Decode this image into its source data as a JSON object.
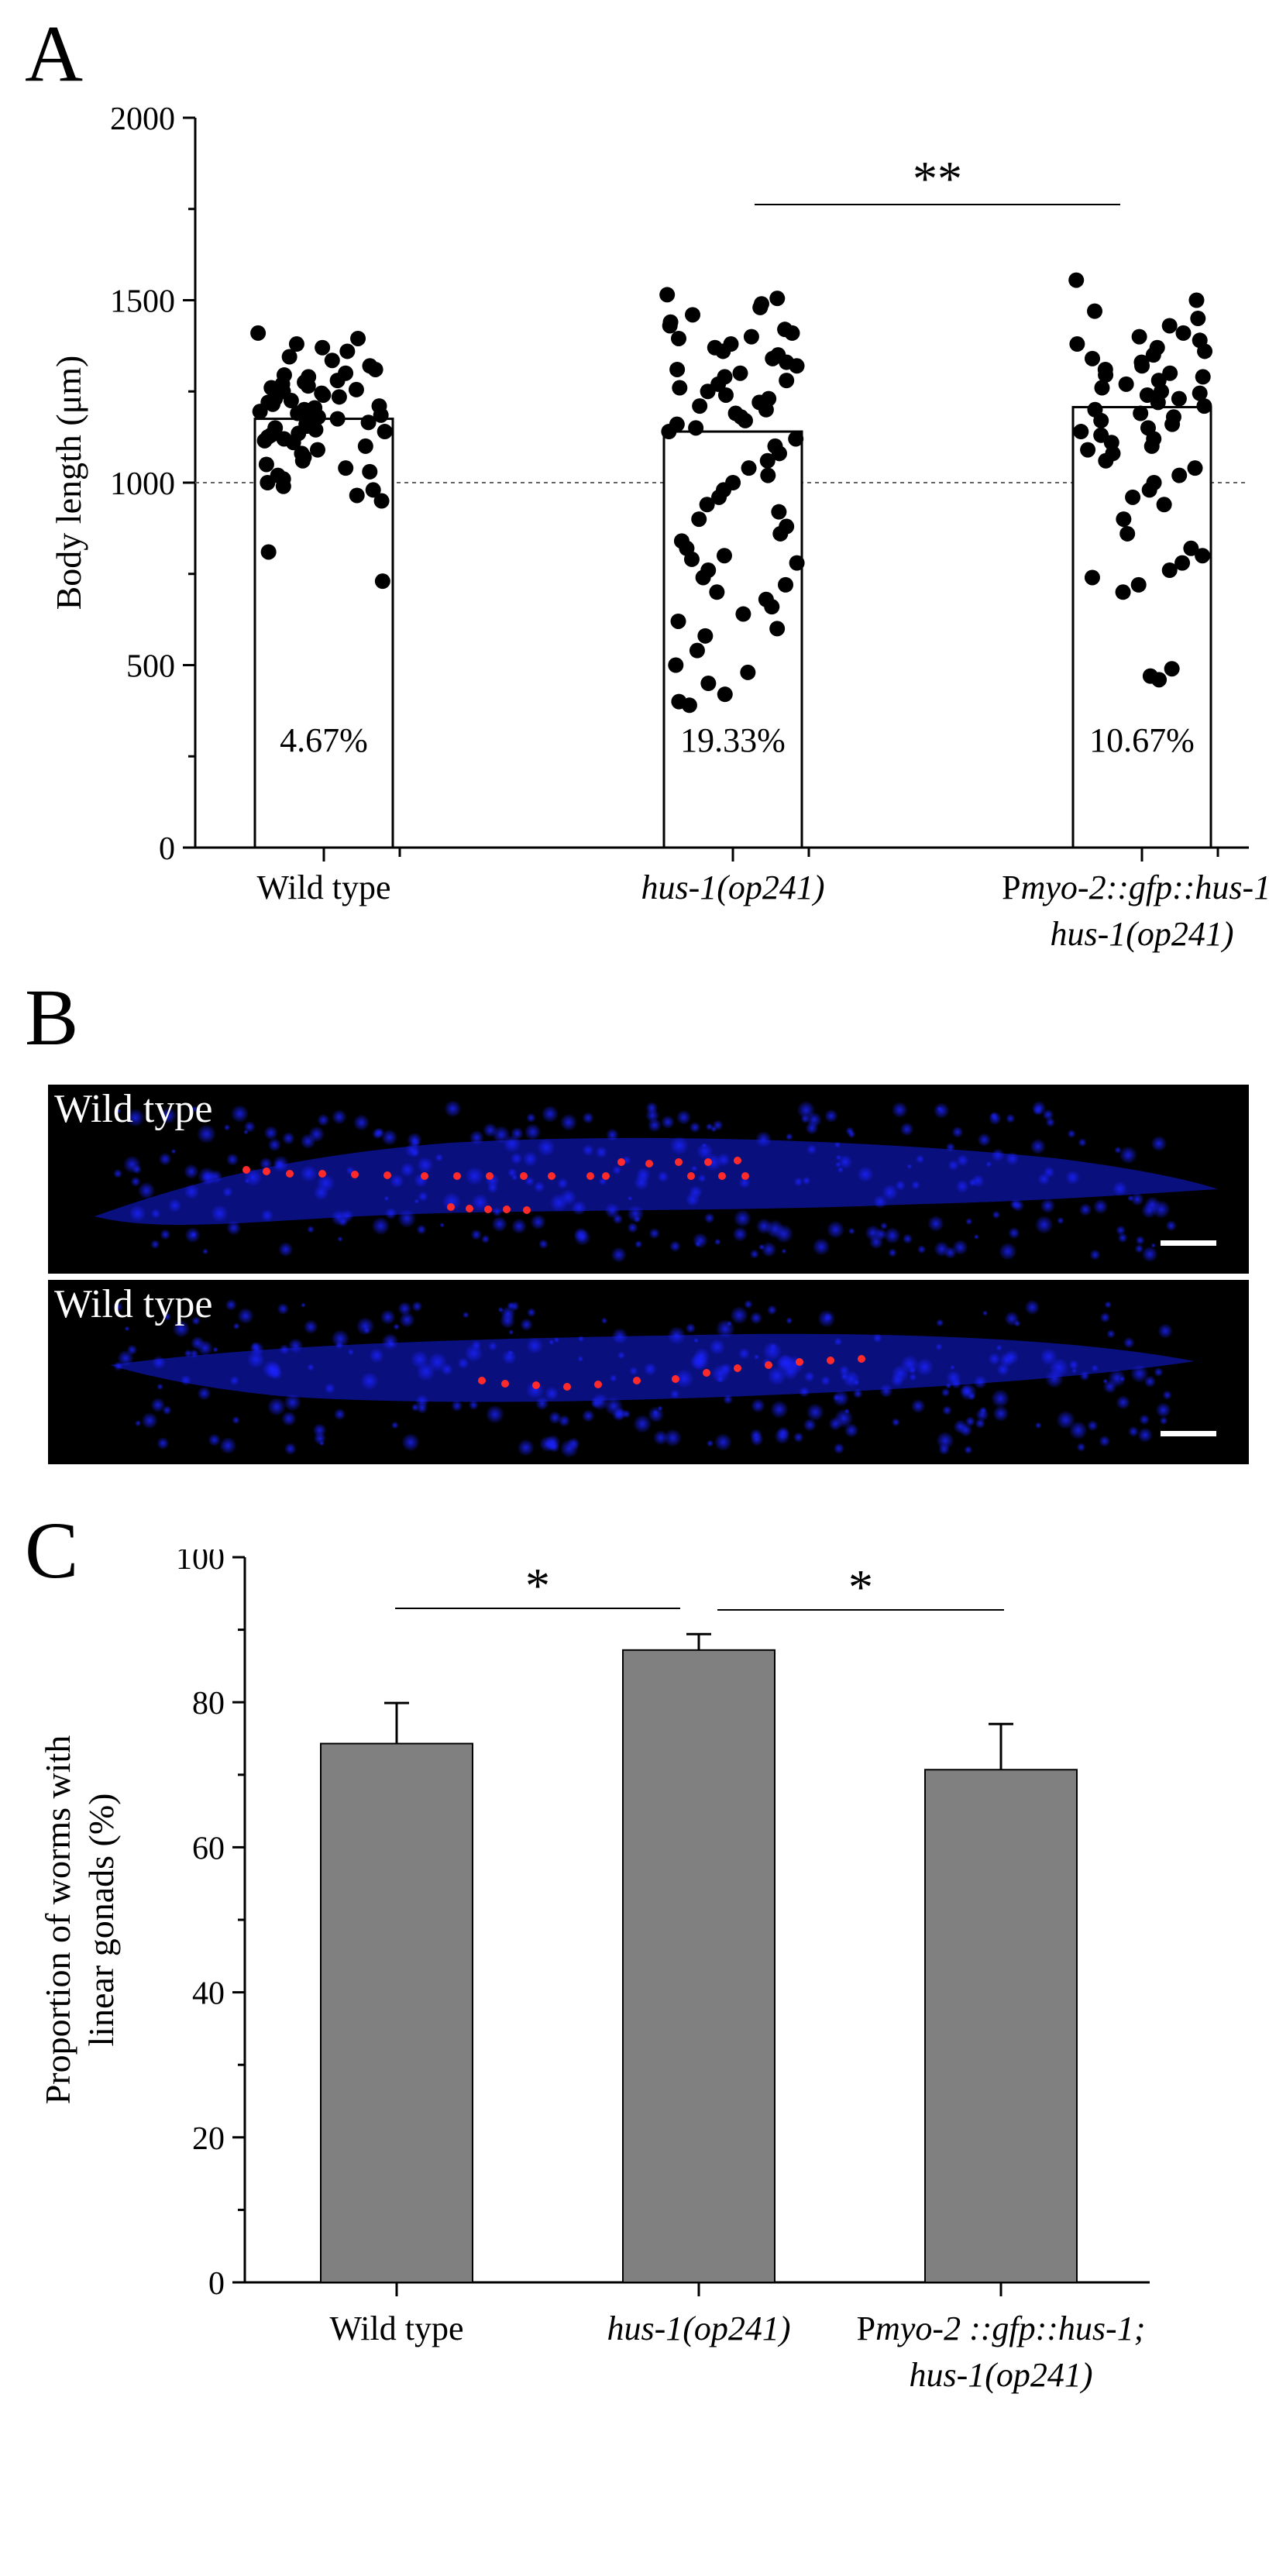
{
  "panels": {
    "a": {
      "letter": "A",
      "chart_data": {
        "type": "scatter",
        "ylabel": "Body length (μm)",
        "ylim": [
          0,
          2000
        ],
        "yticks": [
          0,
          500,
          1000,
          1500,
          2000
        ],
        "reference_line": 1000,
        "categories": [
          {
            "parts": [
              {
                "text": "Wild type",
                "italic": false
              }
            ],
            "line2": []
          },
          {
            "parts": [
              {
                "text": "hus-1(op241)",
                "italic": true
              }
            ],
            "line2": []
          },
          {
            "parts": [
              {
                "text": "P",
                "italic": false
              },
              {
                "text": "myo-2::gfp::hus-1;",
                "italic": true
              }
            ],
            "line2": [
              {
                "text": "hus-1(op241)",
                "italic": true
              }
            ]
          }
        ],
        "bar_means": [
          1175,
          1140,
          1207
        ],
        "percent_labels": [
          "4.67%",
          "19.33%",
          "10.67%"
        ],
        "points": [
          [
            1410,
            1395,
            1380,
            1370,
            1360,
            1345,
            1335,
            1320,
            1310,
            1300,
            1295,
            1290,
            1280,
            1275,
            1270,
            1265,
            1260,
            1255,
            1250,
            1245,
            1240,
            1235,
            1230,
            1225,
            1220,
            1215,
            1210,
            1205,
            1200,
            1195,
            1190,
            1185,
            1180,
            1175,
            1170,
            1165,
            1160,
            1155,
            1150,
            1145,
            1140,
            1135,
            1130,
            1125,
            1120,
            1115,
            1110,
            1100,
            1090,
            1080,
            1070,
            1060,
            1050,
            1040,
            1030,
            1020,
            1010,
            1000,
            990,
            980,
            965,
            950,
            810,
            730
          ],
          [
            1515,
            1505,
            1490,
            1480,
            1460,
            1440,
            1430,
            1420,
            1410,
            1400,
            1395,
            1380,
            1370,
            1360,
            1350,
            1340,
            1330,
            1320,
            1310,
            1300,
            1290,
            1280,
            1270,
            1260,
            1250,
            1240,
            1230,
            1220,
            1210,
            1200,
            1190,
            1180,
            1170,
            1160,
            1150,
            1140,
            1120,
            1100,
            1080,
            1060,
            1040,
            1020,
            1000,
            980,
            960,
            940,
            920,
            900,
            880,
            860,
            840,
            820,
            800,
            790,
            780,
            760,
            740,
            720,
            700,
            680,
            660,
            640,
            620,
            600,
            580,
            540,
            500,
            480,
            450,
            420,
            400,
            390
          ],
          [
            1555,
            1500,
            1470,
            1450,
            1430,
            1410,
            1400,
            1390,
            1380,
            1370,
            1360,
            1350,
            1340,
            1330,
            1320,
            1310,
            1300,
            1295,
            1290,
            1280,
            1270,
            1260,
            1250,
            1245,
            1240,
            1230,
            1220,
            1210,
            1200,
            1190,
            1180,
            1170,
            1160,
            1150,
            1140,
            1130,
            1120,
            1110,
            1100,
            1090,
            1080,
            1060,
            1040,
            1020,
            1000,
            980,
            960,
            940,
            900,
            860,
            820,
            800,
            780,
            760,
            740,
            720,
            700,
            490,
            470,
            460
          ]
        ],
        "significance": [
          {
            "from": 1,
            "to": 2,
            "label": "**"
          }
        ]
      }
    },
    "b": {
      "letter": "B",
      "images": [
        {
          "label": "Wild type"
        },
        {
          "label": "Wild type"
        }
      ],
      "colors": {
        "nuclei": "#1a22ff",
        "marker": "#ff2a2a",
        "background": "#000000"
      }
    },
    "c": {
      "letter": "C",
      "chart_data": {
        "type": "bar",
        "ylabel_lines": [
          "Proportion of worms with",
          "linear gonads (%)"
        ],
        "ylim": [
          0,
          100
        ],
        "yticks": [
          0,
          20,
          40,
          60,
          80,
          100
        ],
        "categories": [
          {
            "parts": [
              {
                "text": "Wild type",
                "italic": false
              }
            ],
            "line2": []
          },
          {
            "parts": [
              {
                "text": "hus-1(op241)",
                "italic": true
              }
            ],
            "line2": []
          },
          {
            "parts": [
              {
                "text": "P",
                "italic": false
              },
              {
                "text": "myo-2 ::gfp::hus-1;",
                "italic": true
              }
            ],
            "line2": [
              {
                "text": "hus-1(op241)",
                "italic": true
              }
            ]
          }
        ],
        "values": [
          74.3,
          87.2,
          70.7
        ],
        "errors": [
          5.6,
          2.2,
          6.3
        ],
        "bar_color": "#808080",
        "significance": [
          {
            "from": 0,
            "to": 1,
            "label": "*"
          },
          {
            "from": 1,
            "to": 2,
            "label": "*"
          }
        ]
      }
    }
  }
}
